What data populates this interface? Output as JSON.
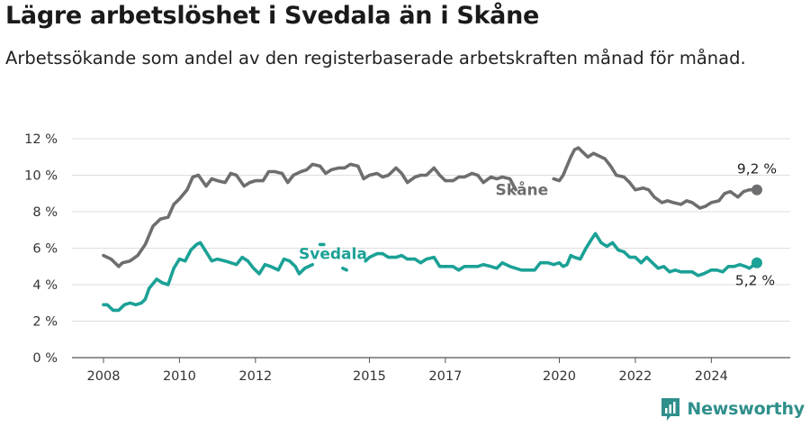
{
  "chart_data": {
    "type": "line",
    "title": "Lägre arbetslöshet i Svedala än i Skåne",
    "subtitle": "Arbetssökande som andel av den registerbaserade arbetskraften månad för månad.",
    "xlabel": "",
    "ylabel": "",
    "ylim": [
      0,
      12
    ],
    "xlim": [
      2007.5,
      2025.7
    ],
    "y_ticks": [
      0,
      2,
      4,
      6,
      8,
      10,
      12
    ],
    "y_tick_labels": [
      "0 %",
      "2 %",
      "4 %",
      "6 %",
      "8 %",
      "10 %",
      "12 %"
    ],
    "x_ticks": [
      2008,
      2010,
      2012,
      2015,
      2017,
      2020,
      2022,
      2024
    ],
    "x_tick_labels": [
      "2008",
      "2010",
      "2012",
      "2015",
      "2017",
      "2020",
      "2022",
      "2024"
    ],
    "grid": "horizontal",
    "series": [
      {
        "name": "Skåne",
        "color": "#6e6e70",
        "end_label": "9,2 %",
        "segments": [
          [
            [
              2008.0,
              5.6
            ],
            [
              2008.2,
              5.4
            ],
            [
              2008.4,
              5.0
            ],
            [
              2008.5,
              5.2
            ],
            [
              2008.7,
              5.3
            ],
            [
              2008.9,
              5.6
            ],
            [
              2009.1,
              6.2
            ],
            [
              2009.3,
              7.2
            ],
            [
              2009.5,
              7.6
            ],
            [
              2009.7,
              7.7
            ],
            [
              2009.85,
              8.4
            ],
            [
              2010.0,
              8.7
            ],
            [
              2010.2,
              9.2
            ],
            [
              2010.35,
              9.9
            ],
            [
              2010.5,
              10.0
            ],
            [
              2010.7,
              9.4
            ],
            [
              2010.85,
              9.8
            ],
            [
              2011.0,
              9.7
            ],
            [
              2011.2,
              9.6
            ],
            [
              2011.35,
              10.1
            ],
            [
              2011.5,
              10.0
            ],
            [
              2011.7,
              9.4
            ],
            [
              2011.85,
              9.6
            ],
            [
              2012.0,
              9.7
            ],
            [
              2012.2,
              9.7
            ],
            [
              2012.35,
              10.2
            ],
            [
              2012.5,
              10.2
            ],
            [
              2012.7,
              10.1
            ],
            [
              2012.85,
              9.6
            ],
            [
              2013.0,
              10.0
            ],
            [
              2013.2,
              10.2
            ],
            [
              2013.35,
              10.3
            ],
            [
              2013.5,
              10.6
            ],
            [
              2013.7,
              10.5
            ],
            [
              2013.85,
              10.1
            ],
            [
              2014.0,
              10.3
            ],
            [
              2014.2,
              10.4
            ],
            [
              2014.35,
              10.4
            ],
            [
              2014.5,
              10.6
            ],
            [
              2014.7,
              10.5
            ],
            [
              2014.85,
              9.8
            ],
            [
              2015.0,
              10.0
            ],
            [
              2015.2,
              10.1
            ],
            [
              2015.35,
              9.9
            ],
            [
              2015.5,
              10.0
            ],
            [
              2015.7,
              10.4
            ],
            [
              2015.85,
              10.1
            ],
            [
              2016.0,
              9.6
            ],
            [
              2016.2,
              9.9
            ],
            [
              2016.35,
              10.0
            ],
            [
              2016.5,
              10.0
            ],
            [
              2016.7,
              10.4
            ],
            [
              2016.85,
              10.0
            ],
            [
              2017.0,
              9.7
            ],
            [
              2017.2,
              9.7
            ],
            [
              2017.35,
              9.9
            ],
            [
              2017.5,
              9.9
            ],
            [
              2017.7,
              10.1
            ],
            [
              2017.85,
              10.0
            ],
            [
              2018.0,
              9.6
            ],
            [
              2018.2,
              9.9
            ],
            [
              2018.35,
              9.8
            ],
            [
              2018.5,
              9.9
            ],
            [
              2018.7,
              9.8
            ],
            [
              2018.85,
              9.2
            ]
          ],
          [
            [
              2019.85,
              9.8
            ],
            [
              2020.0,
              9.7
            ],
            [
              2020.1,
              10.0
            ],
            [
              2020.3,
              11.0
            ],
            [
              2020.4,
              11.4
            ],
            [
              2020.5,
              11.5
            ],
            [
              2020.6,
              11.3
            ],
            [
              2020.75,
              11.0
            ],
            [
              2020.9,
              11.2
            ],
            [
              2021.0,
              11.1
            ],
            [
              2021.2,
              10.9
            ],
            [
              2021.35,
              10.5
            ],
            [
              2021.5,
              10.0
            ],
            [
              2021.7,
              9.9
            ],
            [
              2021.85,
              9.6
            ],
            [
              2022.0,
              9.2
            ],
            [
              2022.2,
              9.3
            ],
            [
              2022.35,
              9.2
            ],
            [
              2022.5,
              8.8
            ],
            [
              2022.7,
              8.5
            ],
            [
              2022.85,
              8.6
            ],
            [
              2023.0,
              8.5
            ],
            [
              2023.2,
              8.4
            ],
            [
              2023.35,
              8.6
            ],
            [
              2023.5,
              8.5
            ],
            [
              2023.7,
              8.2
            ],
            [
              2023.85,
              8.3
            ],
            [
              2024.0,
              8.5
            ],
            [
              2024.2,
              8.6
            ],
            [
              2024.35,
              9.0
            ],
            [
              2024.5,
              9.1
            ],
            [
              2024.7,
              8.8
            ],
            [
              2024.85,
              9.1
            ],
            [
              2025.0,
              9.2
            ],
            [
              2025.2,
              9.2
            ]
          ]
        ]
      },
      {
        "name": "Svedala",
        "color": "#1ba196",
        "end_label": "5,2 %",
        "segments": [
          [
            [
              2008.0,
              2.9
            ],
            [
              2008.1,
              2.9
            ],
            [
              2008.25,
              2.6
            ],
            [
              2008.4,
              2.6
            ],
            [
              2008.55,
              2.9
            ],
            [
              2008.7,
              3.0
            ],
            [
              2008.85,
              2.9
            ],
            [
              2009.0,
              3.0
            ],
            [
              2009.1,
              3.2
            ],
            [
              2009.2,
              3.8
            ],
            [
              2009.4,
              4.3
            ],
            [
              2009.55,
              4.1
            ],
            [
              2009.7,
              4.0
            ],
            [
              2009.85,
              4.9
            ],
            [
              2010.0,
              5.4
            ],
            [
              2010.15,
              5.3
            ],
            [
              2010.3,
              5.9
            ],
            [
              2010.45,
              6.2
            ],
            [
              2010.55,
              6.3
            ],
            [
              2010.7,
              5.8
            ],
            [
              2010.85,
              5.3
            ],
            [
              2011.0,
              5.4
            ],
            [
              2011.2,
              5.3
            ],
            [
              2011.35,
              5.2
            ],
            [
              2011.5,
              5.1
            ],
            [
              2011.65,
              5.5
            ],
            [
              2011.8,
              5.3
            ],
            [
              2011.95,
              4.9
            ],
            [
              2012.1,
              4.6
            ],
            [
              2012.25,
              5.1
            ],
            [
              2012.4,
              5.0
            ],
            [
              2012.6,
              4.8
            ],
            [
              2012.75,
              5.4
            ],
            [
              2012.9,
              5.3
            ],
            [
              2013.05,
              5.0
            ],
            [
              2013.15,
              4.6
            ],
            [
              2013.3,
              4.9
            ],
            [
              2013.5,
              5.1
            ]
          ],
          [
            [
              2013.7,
              6.2
            ],
            [
              2013.8,
              6.2
            ]
          ],
          [
            [
              2014.3,
              4.9
            ],
            [
              2014.4,
              4.8
            ]
          ],
          [
            [
              2014.9,
              5.3
            ],
            [
              2015.0,
              5.5
            ],
            [
              2015.2,
              5.7
            ],
            [
              2015.35,
              5.7
            ],
            [
              2015.5,
              5.5
            ],
            [
              2015.7,
              5.5
            ],
            [
              2015.85,
              5.6
            ],
            [
              2016.0,
              5.4
            ],
            [
              2016.2,
              5.4
            ],
            [
              2016.35,
              5.2
            ],
            [
              2016.5,
              5.4
            ],
            [
              2016.7,
              5.5
            ],
            [
              2016.85,
              5.0
            ],
            [
              2017.0,
              5.0
            ],
            [
              2017.2,
              5.0
            ],
            [
              2017.35,
              4.8
            ],
            [
              2017.5,
              5.0
            ],
            [
              2017.7,
              5.0
            ],
            [
              2017.85,
              5.0
            ],
            [
              2018.0,
              5.1
            ],
            [
              2018.2,
              5.0
            ],
            [
              2018.35,
              4.9
            ],
            [
              2018.5,
              5.2
            ],
            [
              2018.7,
              5.0
            ],
            [
              2018.85,
              4.9
            ],
            [
              2019.0,
              4.8
            ],
            [
              2019.2,
              4.8
            ],
            [
              2019.35,
              4.8
            ],
            [
              2019.5,
              5.2
            ],
            [
              2019.7,
              5.2
            ],
            [
              2019.85,
              5.1
            ],
            [
              2020.0,
              5.2
            ],
            [
              2020.1,
              5.0
            ],
            [
              2020.2,
              5.1
            ],
            [
              2020.3,
              5.6
            ],
            [
              2020.4,
              5.5
            ],
            [
              2020.55,
              5.4
            ],
            [
              2020.7,
              6.0
            ],
            [
              2020.85,
              6.5
            ],
            [
              2020.95,
              6.8
            ],
            [
              2021.1,
              6.3
            ],
            [
              2021.25,
              6.1
            ],
            [
              2021.4,
              6.3
            ],
            [
              2021.55,
              5.9
            ],
            [
              2021.7,
              5.8
            ],
            [
              2021.85,
              5.5
            ],
            [
              2022.0,
              5.5
            ],
            [
              2022.15,
              5.2
            ],
            [
              2022.3,
              5.5
            ],
            [
              2022.45,
              5.2
            ],
            [
              2022.6,
              4.9
            ],
            [
              2022.75,
              5.0
            ],
            [
              2022.9,
              4.7
            ],
            [
              2023.05,
              4.8
            ],
            [
              2023.2,
              4.7
            ],
            [
              2023.35,
              4.7
            ],
            [
              2023.5,
              4.7
            ],
            [
              2023.65,
              4.5
            ],
            [
              2023.8,
              4.6
            ],
            [
              2024.0,
              4.8
            ],
            [
              2024.15,
              4.8
            ],
            [
              2024.3,
              4.7
            ],
            [
              2024.45,
              5.0
            ],
            [
              2024.6,
              5.0
            ],
            [
              2024.75,
              5.1
            ],
            [
              2024.9,
              5.0
            ],
            [
              2025.0,
              4.9
            ],
            [
              2025.2,
              5.2
            ]
          ]
        ]
      }
    ]
  },
  "brand": {
    "name": "Newsworthy"
  }
}
